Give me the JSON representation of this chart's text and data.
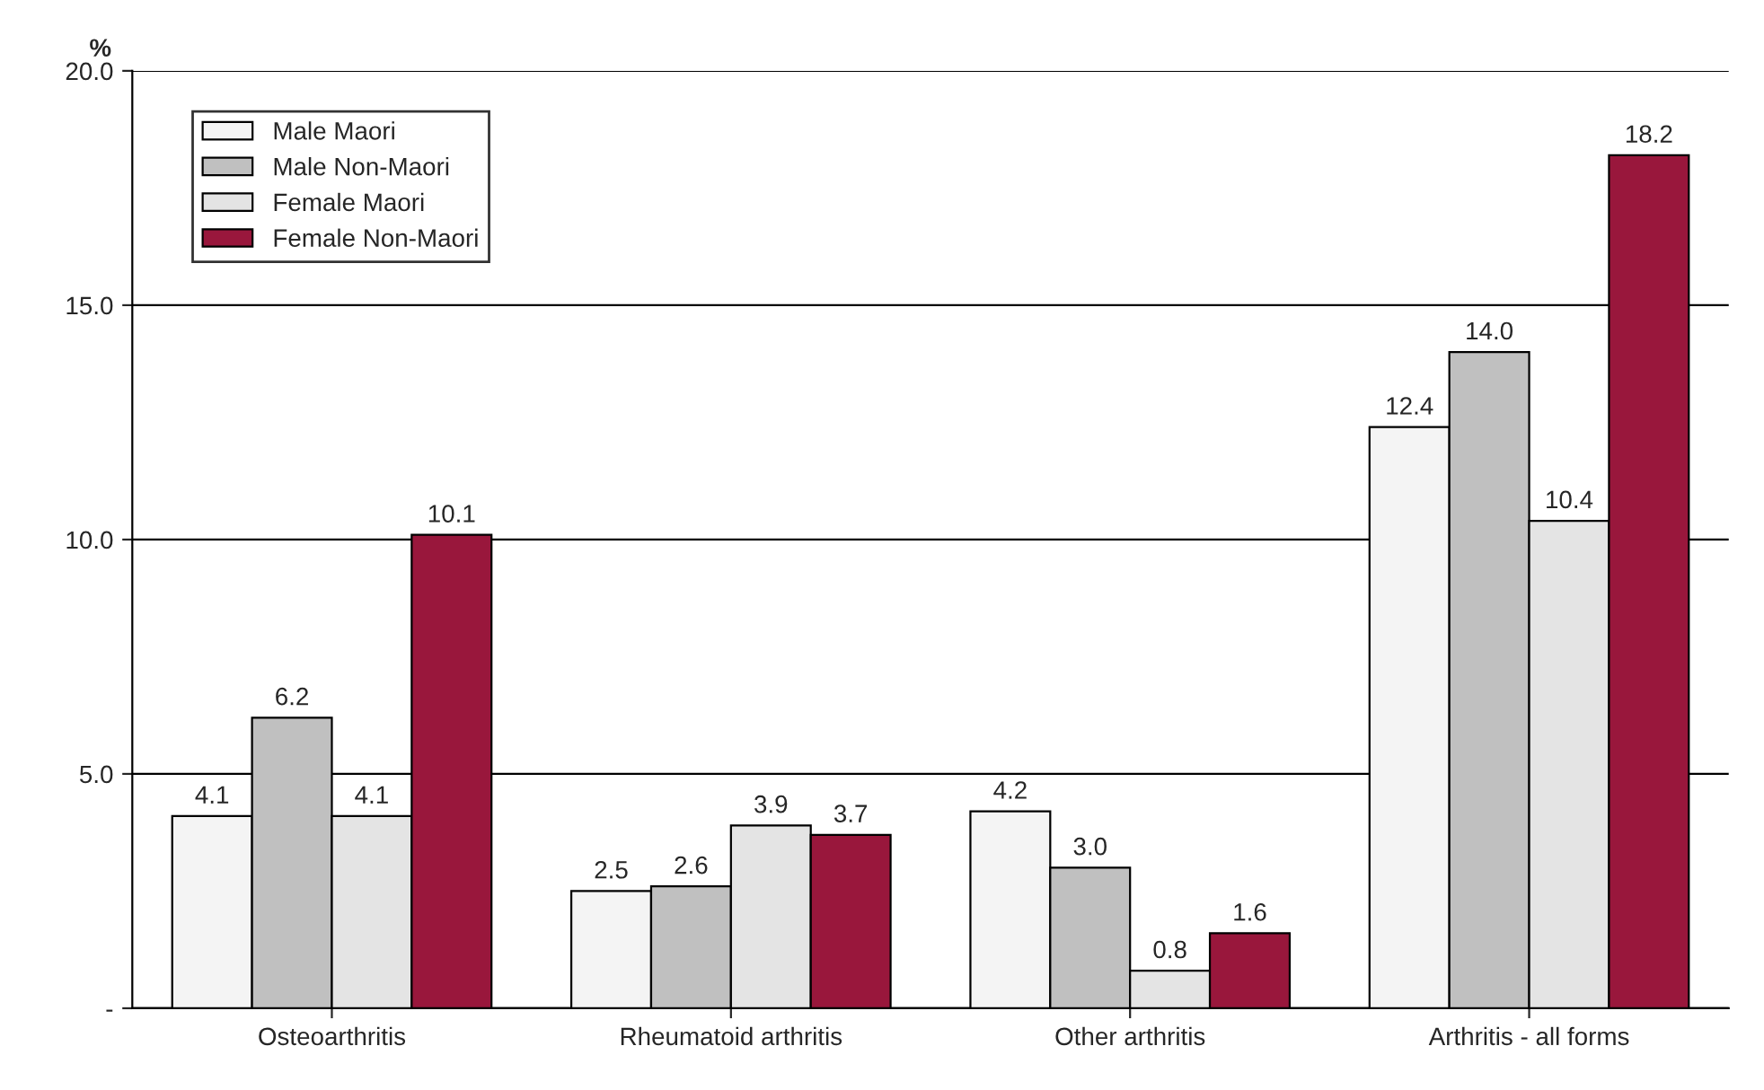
{
  "chart_data": {
    "type": "bar",
    "ylabel": "%",
    "categories": [
      "Osteoarthritis",
      "Rheumatoid arthritis",
      "Other arthritis",
      "Arthritis - all forms"
    ],
    "series": [
      {
        "name": "Male Maori",
        "color": "#f4f4f4",
        "values": [
          4.1,
          2.5,
          4.2,
          12.4
        ],
        "value_labels": [
          "4.1",
          "2.5",
          "4.2",
          "12.4"
        ]
      },
      {
        "name": "Male Non-Maori",
        "color": "#c0c0c0",
        "values": [
          6.2,
          2.6,
          3.0,
          14.0
        ],
        "value_labels": [
          "6.2",
          "2.6",
          "3.0",
          "14.0"
        ]
      },
      {
        "name": "Female Maori",
        "color": "#e4e4e4",
        "values": [
          4.1,
          3.9,
          0.8,
          10.4
        ],
        "value_labels": [
          "4.1",
          "3.9",
          "0.8",
          "10.4"
        ]
      },
      {
        "name": "Female Non-Maori",
        "color": "#99173c",
        "values": [
          10.1,
          3.7,
          1.6,
          18.2
        ],
        "value_labels": [
          "10.1",
          "3.7",
          "1.6",
          "18.2"
        ]
      }
    ],
    "ylim": [
      0,
      20
    ],
    "yticks": [
      {
        "value": 0,
        "label": "-"
      },
      {
        "value": 5,
        "label": "5.0"
      },
      {
        "value": 10,
        "label": "10.0"
      },
      {
        "value": 15,
        "label": "15.0"
      },
      {
        "value": 20,
        "label": "20.0"
      }
    ],
    "grid": "y",
    "legend": "top left"
  }
}
